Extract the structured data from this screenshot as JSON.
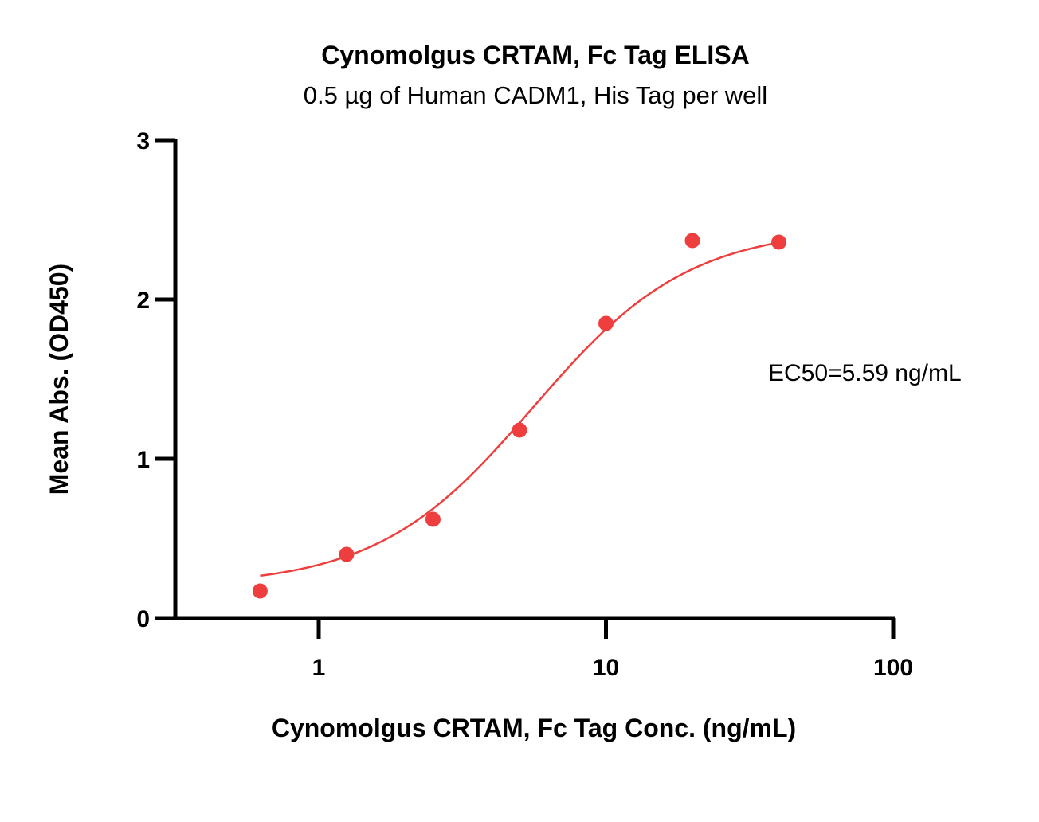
{
  "chart_data": {
    "type": "scatter",
    "title": "Cynomolgus CRTAM, Fc Tag ELISA",
    "subtitle": "0.5 µg of Human CADM1, His Tag per well",
    "xlabel": "Cynomolgus CRTAM, Fc Tag Conc. (ng/mL)",
    "ylabel": "Mean Abs. (OD450)",
    "xscale": "log",
    "xlim": [
      0.3,
      100
    ],
    "ylim": [
      0,
      3
    ],
    "xticks": [
      1,
      10,
      100
    ],
    "xtick_labels": [
      "1",
      "10",
      "100"
    ],
    "yticks": [
      0,
      1,
      2,
      3
    ],
    "ytick_labels": [
      "0",
      "1",
      "2",
      "3"
    ],
    "grid": false,
    "color": "#ee3e3e",
    "series": [
      {
        "x": [
          0.625,
          1.25,
          2.5,
          5,
          10,
          20,
          40
        ],
        "y": [
          0.17,
          0.4,
          0.62,
          1.18,
          1.85,
          2.37,
          2.36
        ]
      }
    ],
    "fit": {
      "model": "4PL",
      "bottom": 0.2,
      "top": 2.45,
      "ec50": 5.59,
      "hill": 1.6
    },
    "annotation": "EC50=5.59 ng/mL"
  }
}
